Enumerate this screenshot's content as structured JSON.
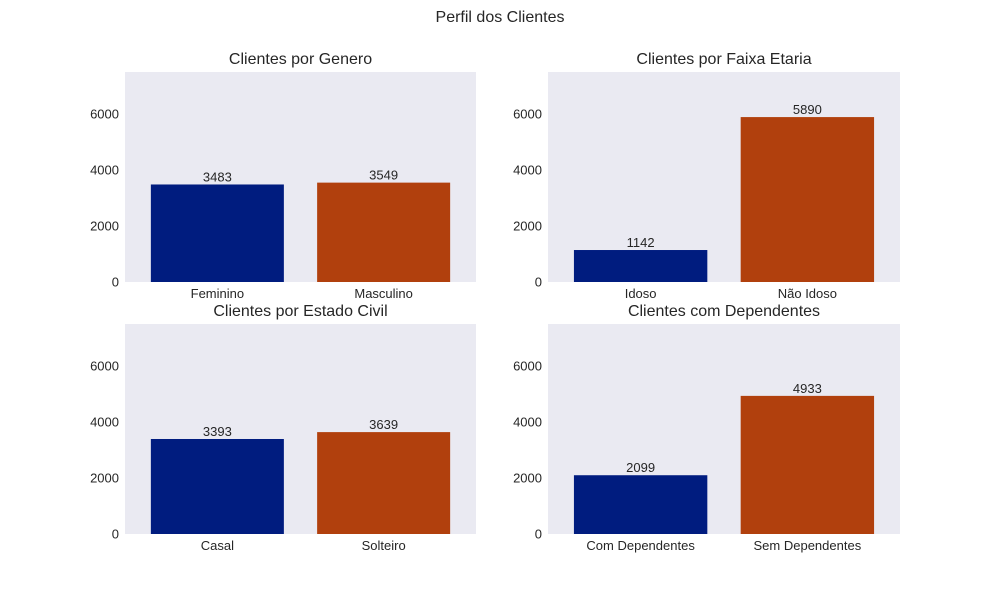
{
  "figure": {
    "suptitle": "Perfil dos Clientes",
    "colors": {
      "background": "#eaeaf2",
      "series": [
        "#001c7f",
        "#b1400d"
      ]
    }
  },
  "chart_data": [
    {
      "type": "bar",
      "title": "Clientes por Genero",
      "categories": [
        "Feminino",
        "Masculino"
      ],
      "values": [
        3483,
        3549
      ],
      "ylim": [
        0,
        7500
      ],
      "yticks": [
        0,
        2000,
        4000,
        6000
      ],
      "grid": false
    },
    {
      "type": "bar",
      "title": "Clientes por Faixa Etaria",
      "categories": [
        "Idoso",
        "Não Idoso"
      ],
      "values": [
        1142,
        5890
      ],
      "ylim": [
        0,
        7500
      ],
      "yticks": [
        0,
        2000,
        4000,
        6000
      ],
      "grid": false
    },
    {
      "type": "bar",
      "title": "Clientes por Estado Civil",
      "categories": [
        "Casal",
        "Solteiro"
      ],
      "values": [
        3393,
        3639
      ],
      "ylim": [
        0,
        7500
      ],
      "yticks": [
        0,
        2000,
        4000,
        6000
      ],
      "grid": false
    },
    {
      "type": "bar",
      "title": "Clientes com Dependentes",
      "categories": [
        "Com Dependentes",
        "Sem Dependentes"
      ],
      "values": [
        2099,
        4933
      ],
      "ylim": [
        0,
        7500
      ],
      "yticks": [
        0,
        2000,
        4000,
        6000
      ],
      "grid": false
    }
  ]
}
